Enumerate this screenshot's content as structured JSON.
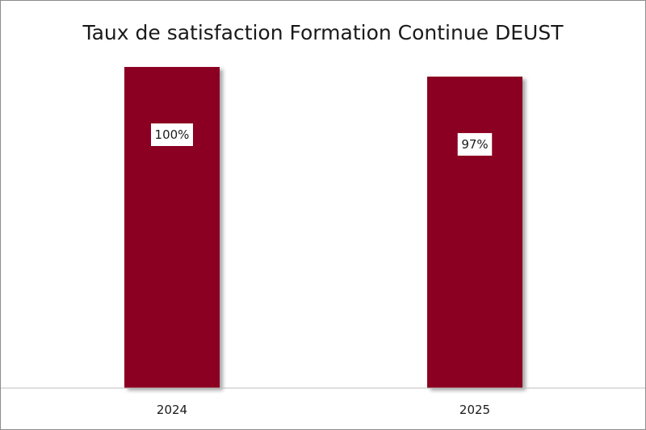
{
  "chart_data": {
    "type": "bar",
    "title": "Taux de satisfaction Formation Continue DEUST",
    "categories": [
      "2024",
      "2025"
    ],
    "values": [
      100,
      97
    ],
    "data_labels": [
      "100%",
      "97%"
    ],
    "xlabel": "",
    "ylabel": "",
    "ylim": [
      0,
      100
    ],
    "grid": false,
    "legend": "none",
    "bar_color": "#8b0024",
    "label_background": "#ffffff"
  }
}
